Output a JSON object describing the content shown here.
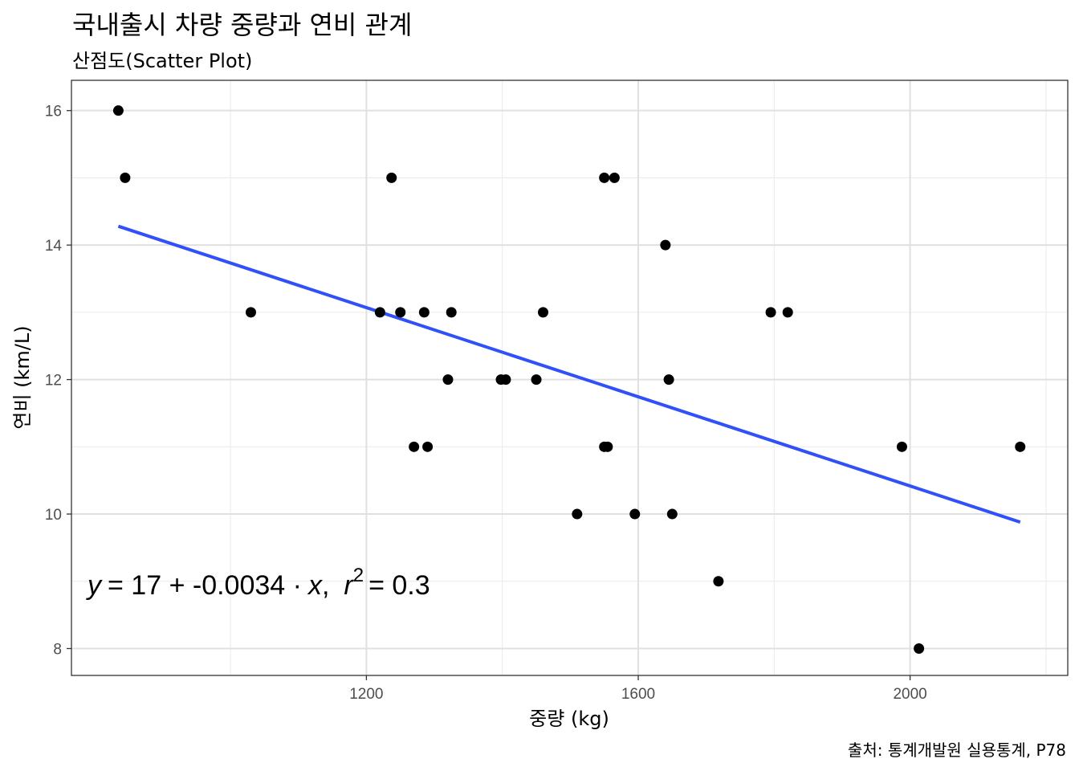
{
  "title": "국내출시 차량 중량과 연비 관계",
  "subtitle": "산점도(Scatter Plot)",
  "caption": "출처: 통계개발원 실용통계, P78",
  "chart_data": {
    "type": "scatter",
    "xlabel": "중량 (kg)",
    "ylabel": "연비 (km/L)",
    "xlim": [
      766,
      2232
    ],
    "ylim": [
      7.6,
      16.45
    ],
    "x_ticks": [
      1200,
      1600,
      2000
    ],
    "y_ticks": [
      8,
      10,
      12,
      14,
      16
    ],
    "x_minor": [
      1000,
      1400,
      1800,
      2200
    ],
    "y_minor": [
      9,
      11,
      13,
      15
    ],
    "grid": true,
    "point_color": "#000000",
    "points": [
      {
        "x": 835,
        "y": 16
      },
      {
        "x": 845,
        "y": 15
      },
      {
        "x": 1237,
        "y": 15
      },
      {
        "x": 1550,
        "y": 15
      },
      {
        "x": 1565,
        "y": 15
      },
      {
        "x": 1640,
        "y": 14
      },
      {
        "x": 1030,
        "y": 13
      },
      {
        "x": 1220,
        "y": 13
      },
      {
        "x": 1250,
        "y": 13
      },
      {
        "x": 1285,
        "y": 13
      },
      {
        "x": 1325,
        "y": 13
      },
      {
        "x": 1460,
        "y": 13
      },
      {
        "x": 1795,
        "y": 13
      },
      {
        "x": 1820,
        "y": 13
      },
      {
        "x": 1320,
        "y": 12
      },
      {
        "x": 1398,
        "y": 12
      },
      {
        "x": 1405,
        "y": 12
      },
      {
        "x": 1450,
        "y": 12
      },
      {
        "x": 1645,
        "y": 12
      },
      {
        "x": 1270,
        "y": 11
      },
      {
        "x": 1290,
        "y": 11
      },
      {
        "x": 1550,
        "y": 11
      },
      {
        "x": 1555,
        "y": 11
      },
      {
        "x": 1988,
        "y": 11
      },
      {
        "x": 2162,
        "y": 11
      },
      {
        "x": 1510,
        "y": 10
      },
      {
        "x": 1595,
        "y": 10
      },
      {
        "x": 1650,
        "y": 10
      },
      {
        "x": 1718,
        "y": 9
      },
      {
        "x": 2013,
        "y": 8
      }
    ],
    "fit_line": {
      "color": "#3050f8",
      "x": [
        835,
        2162
      ],
      "y": [
        14.28,
        9.88
      ]
    },
    "annotation": {
      "y": "y",
      "eq": "= 17 + -0.0034 ·",
      "x": "x",
      "comma": ",",
      "r": "r",
      "sup": "2",
      "rhs": "= 0.3"
    }
  }
}
